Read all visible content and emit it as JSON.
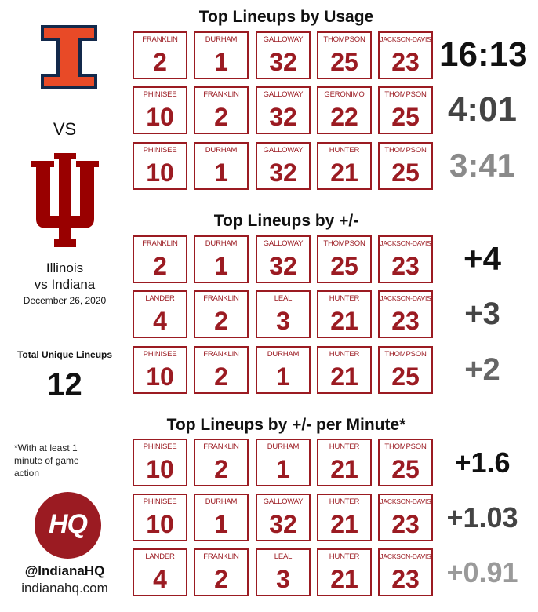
{
  "colors": {
    "illinois_orange": "#e84a27",
    "illinois_navy": "#13294b",
    "indiana_crimson": "#990000",
    "card_red": "#9b1b22"
  },
  "left": {
    "illinois_logo": "illinois-block-i-logo",
    "vs": "VS",
    "indiana_logo": "indiana-trident-logo",
    "matchup_line1": "Illinois",
    "matchup_line2": "vs Indiana",
    "date": "December 26, 2020",
    "unique_label": "Total Unique Lineups",
    "unique_value": "12",
    "footnote": "*With at least 1 minute of game action",
    "brand_logo": "HQ",
    "handle": "@IndianaHQ",
    "site": "indianahq.com"
  },
  "sections": [
    {
      "title": "Top Lineups by Usage",
      "rows": [
        {
          "stat": "16:13",
          "stat_color": "#111111",
          "players": [
            {
              "name": "FRANKLIN",
              "number": "2"
            },
            {
              "name": "DURHAM",
              "number": "1"
            },
            {
              "name": "GALLOWAY",
              "number": "32"
            },
            {
              "name": "THOMPSON",
              "number": "25"
            },
            {
              "name": "JACKSON-DAVIS",
              "number": "23"
            }
          ]
        },
        {
          "stat": "4:01",
          "stat_color": "#444444",
          "players": [
            {
              "name": "PHINISEE",
              "number": "10"
            },
            {
              "name": "FRANKLIN",
              "number": "2"
            },
            {
              "name": "GALLOWAY",
              "number": "32"
            },
            {
              "name": "GERONIMO",
              "number": "22"
            },
            {
              "name": "THOMPSON",
              "number": "25"
            }
          ]
        },
        {
          "stat": "3:41",
          "stat_color": "#8a8a8a",
          "players": [
            {
              "name": "PHINISEE",
              "number": "10"
            },
            {
              "name": "DURHAM",
              "number": "1"
            },
            {
              "name": "GALLOWAY",
              "number": "32"
            },
            {
              "name": "HUNTER",
              "number": "21"
            },
            {
              "name": "THOMPSON",
              "number": "25"
            }
          ]
        }
      ]
    },
    {
      "title": "Top Lineups by +/-",
      "rows": [
        {
          "stat": "+4",
          "stat_color": "#111111",
          "players": [
            {
              "name": "FRANKLIN",
              "number": "2"
            },
            {
              "name": "DURHAM",
              "number": "1"
            },
            {
              "name": "GALLOWAY",
              "number": "32"
            },
            {
              "name": "THOMPSON",
              "number": "25"
            },
            {
              "name": "JACKSON-DAVIS",
              "number": "23"
            }
          ]
        },
        {
          "stat": "+3",
          "stat_color": "#444444",
          "players": [
            {
              "name": "LANDER",
              "number": "4"
            },
            {
              "name": "FRANKLIN",
              "number": "2"
            },
            {
              "name": "LEAL",
              "number": "3"
            },
            {
              "name": "HUNTER",
              "number": "21"
            },
            {
              "name": "JACKSON-DAVIS",
              "number": "23"
            }
          ]
        },
        {
          "stat": "+2",
          "stat_color": "#666666",
          "players": [
            {
              "name": "PHINISEE",
              "number": "10"
            },
            {
              "name": "FRANKLIN",
              "number": "2"
            },
            {
              "name": "DURHAM",
              "number": "1"
            },
            {
              "name": "HUNTER",
              "number": "21"
            },
            {
              "name": "THOMPSON",
              "number": "25"
            }
          ]
        }
      ]
    },
    {
      "title": "Top Lineups by +/- per Minute*",
      "rows": [
        {
          "stat": "+1.6",
          "stat_color": "#111111",
          "players": [
            {
              "name": "PHINISEE",
              "number": "10"
            },
            {
              "name": "FRANKLIN",
              "number": "2"
            },
            {
              "name": "DURHAM",
              "number": "1"
            },
            {
              "name": "HUNTER",
              "number": "21"
            },
            {
              "name": "THOMPSON",
              "number": "25"
            }
          ]
        },
        {
          "stat": "+1.03",
          "stat_color": "#444444",
          "players": [
            {
              "name": "PHINISEE",
              "number": "10"
            },
            {
              "name": "DURHAM",
              "number": "1"
            },
            {
              "name": "GALLOWAY",
              "number": "32"
            },
            {
              "name": "HUNTER",
              "number": "21"
            },
            {
              "name": "JACKSON-DAVIS",
              "number": "23"
            }
          ]
        },
        {
          "stat": "+0.91",
          "stat_color": "#9a9a9a",
          "players": [
            {
              "name": "LANDER",
              "number": "4"
            },
            {
              "name": "FRANKLIN",
              "number": "2"
            },
            {
              "name": "LEAL",
              "number": "3"
            },
            {
              "name": "HUNTER",
              "number": "21"
            },
            {
              "name": "JACKSON-DAVIS",
              "number": "23"
            }
          ]
        }
      ]
    }
  ]
}
